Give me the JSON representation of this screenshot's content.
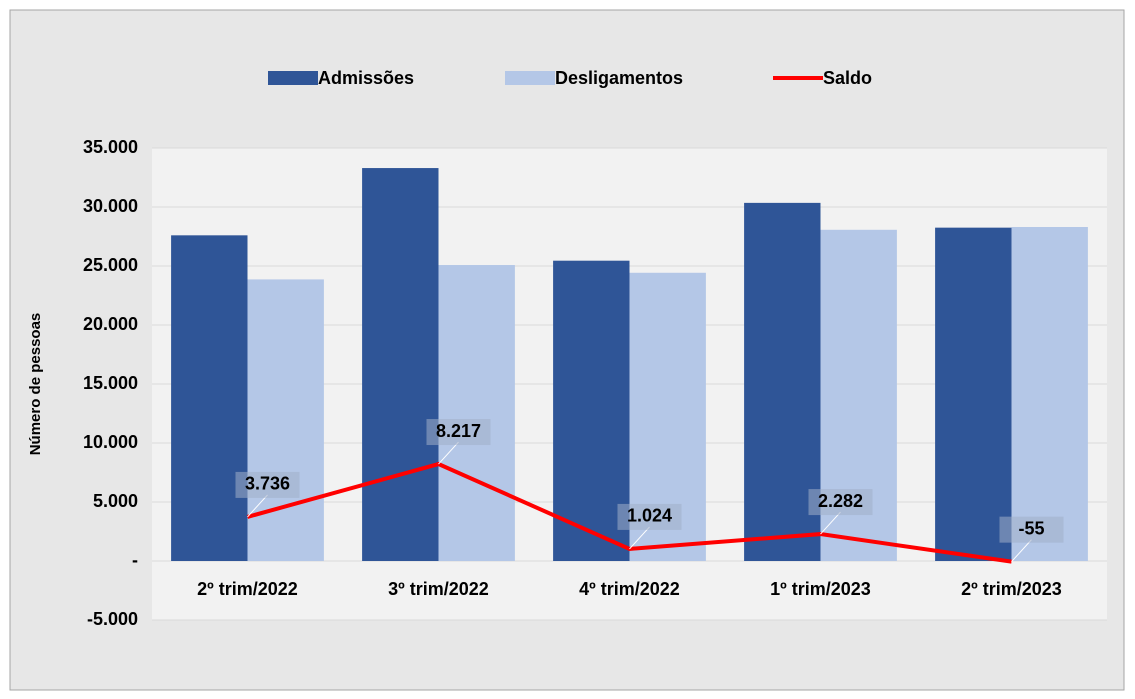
{
  "chart_data": {
    "type": "bar",
    "y_label": "Número de pessoas",
    "categories": [
      "2º trim/2022",
      "3º trim/2022",
      "4º trim/2022",
      "1º trim/2023",
      "2º trim/2023"
    ],
    "series": [
      {
        "name": "Admissões",
        "color": "#2f5597",
        "values": [
          27600,
          33300,
          25450,
          30350,
          28250
        ]
      },
      {
        "name": "Desligamentos",
        "color": "#b4c7e7",
        "values": [
          23864,
          25083,
          24426,
          28068,
          28305
        ]
      },
      {
        "name": "Saldo",
        "type": "line",
        "color": "#ff0000",
        "values": [
          3736,
          8217,
          1024,
          2282,
          -55
        ],
        "value_labels": [
          "3.736",
          "8.217",
          "1.024",
          "2.282",
          "-55"
        ]
      }
    ],
    "ylim": [
      -5000,
      35000
    ],
    "yticks": [
      {
        "value": -5000,
        "label": "-5.000"
      },
      {
        "value": 0,
        "label": "-"
      },
      {
        "value": 5000,
        "label": "5.000"
      },
      {
        "value": 10000,
        "label": "10.000"
      },
      {
        "value": 15000,
        "label": "15.000"
      },
      {
        "value": 20000,
        "label": "20.000"
      },
      {
        "value": 25000,
        "label": "25.000"
      },
      {
        "value": 30000,
        "label": "30.000"
      },
      {
        "value": 35000,
        "label": "35.000"
      }
    ],
    "grid": true
  }
}
